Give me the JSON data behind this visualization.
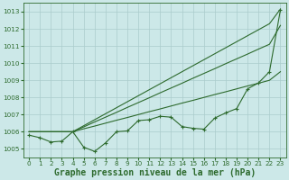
{
  "x": [
    0,
    1,
    2,
    3,
    4,
    5,
    6,
    7,
    8,
    9,
    10,
    11,
    12,
    13,
    14,
    15,
    16,
    17,
    18,
    19,
    20,
    21,
    22,
    23
  ],
  "line_main": [
    1005.8,
    1005.65,
    1005.4,
    1005.45,
    1006.0,
    1005.1,
    1004.85,
    1005.35,
    1006.0,
    1006.05,
    1006.65,
    1006.7,
    1006.9,
    1006.85,
    1006.3,
    1006.2,
    1006.15,
    1006.8,
    1007.1,
    1007.35,
    1008.5,
    1008.85,
    1009.5,
    1013.1
  ],
  "line_top": [
    1006.0,
    1006.0,
    1006.0,
    1006.0,
    1006.0,
    1006.35,
    1006.7,
    1007.05,
    1007.4,
    1007.75,
    1008.1,
    1008.45,
    1008.8,
    1009.15,
    1009.5,
    1009.85,
    1010.2,
    1010.55,
    1010.9,
    1011.25,
    1011.6,
    1011.95,
    1012.3,
    1013.15
  ],
  "line_mid": [
    1006.0,
    1006.0,
    1006.0,
    1006.0,
    1006.0,
    1006.28,
    1006.57,
    1006.85,
    1007.13,
    1007.42,
    1007.7,
    1007.98,
    1008.27,
    1008.55,
    1008.83,
    1009.12,
    1009.4,
    1009.68,
    1009.97,
    1010.25,
    1010.53,
    1010.82,
    1011.1,
    1012.2
  ],
  "line_low": [
    1006.0,
    1006.0,
    1006.0,
    1006.0,
    1006.0,
    1006.17,
    1006.33,
    1006.5,
    1006.67,
    1006.83,
    1007.0,
    1007.17,
    1007.33,
    1007.5,
    1007.67,
    1007.83,
    1008.0,
    1008.17,
    1008.33,
    1008.5,
    1008.67,
    1008.83,
    1009.0,
    1009.5
  ],
  "ylim": [
    1004.5,
    1013.5
  ],
  "xlim": [
    -0.5,
    23.5
  ],
  "yticks": [
    1005,
    1006,
    1007,
    1008,
    1009,
    1010,
    1011,
    1012,
    1013
  ],
  "xticks": [
    0,
    1,
    2,
    3,
    4,
    5,
    6,
    7,
    8,
    9,
    10,
    11,
    12,
    13,
    14,
    15,
    16,
    17,
    18,
    19,
    20,
    21,
    22,
    23
  ],
  "xlabel": "Graphe pression niveau de la mer (hPa)",
  "line_color": "#2d6a2d",
  "bg_color": "#cce8e8",
  "grid_color": "#aacccc",
  "tick_fontsize": 5.2,
  "xlabel_fontsize": 7.0
}
